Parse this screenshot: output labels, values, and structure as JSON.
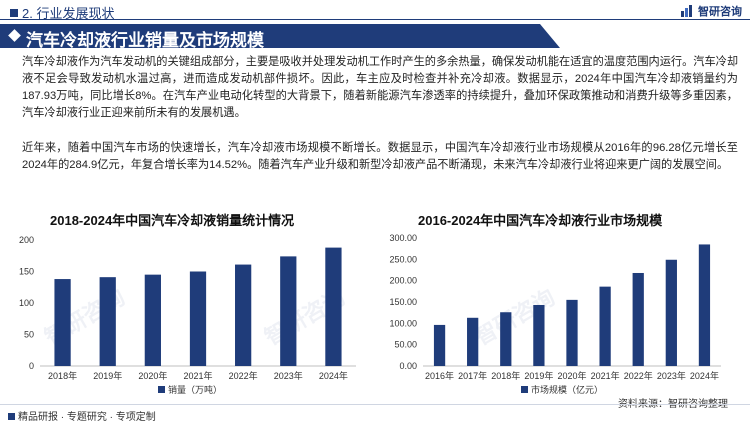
{
  "header": {
    "section": "2. 行业发展现状",
    "brand": "智研咨询"
  },
  "banner": {
    "title": "汽车冷却液行业销量及市场规模"
  },
  "paragraphs": {
    "p1": "汽车冷却液作为汽车发动机的关键组成部分，主要是吸收并处理发动机工作时产生的多余热量，确保发动机能在适宜的温度范围内运行。汽车冷却液不足会导致发动机水温过高，进而造成发动机部件损坏。因此，车主应及时检查并补充冷却液。数据显示，2024年中国汽车冷却液销量约为187.93万吨，同比增长8%。在汽车产业电动化转型的大背景下，随着新能源汽车渗透率的持续提升，叠加环保政策推动和消费升级等多重因素，汽车冷却液行业正迎来前所未有的发展机遇。",
    "p2": "近年来，随着中国汽车市场的快速增长，汽车冷却液市场规模不断增长。数据显示，中国汽车冷却液行业市场规模从2016年的96.28亿元增长至2024年的284.9亿元，年复合增长率为14.52%。随着汽车产业升级和新型冷却液产品不断涌现，未来汽车冷却液行业将迎来更广阔的发展空间。"
  },
  "chart_data": [
    {
      "type": "bar",
      "title": "2018-2024年中国汽车冷却液销量统计情况",
      "categories": [
        "2018年",
        "2019年",
        "2020年",
        "2021年",
        "2022年",
        "2023年",
        "2024年"
      ],
      "series": [
        {
          "name": "销量（万吨）",
          "values": [
            138,
            141,
            145,
            150,
            161,
            174,
            187.93
          ]
        }
      ],
      "ylim": [
        0,
        200
      ],
      "yticks": [
        "0",
        "50",
        "100",
        "150",
        "200"
      ],
      "grid": false,
      "legend": "bottom",
      "color": "#1f3c7a"
    },
    {
      "type": "bar",
      "title": "2016-2024年中国汽车冷却液行业市场规模",
      "categories": [
        "2016年",
        "2017年",
        "2018年",
        "2019年",
        "2020年",
        "2021年",
        "2022年",
        "2023年",
        "2024年"
      ],
      "series": [
        {
          "name": "市场规模（亿元）",
          "values": [
            96.28,
            113,
            126,
            143,
            155,
            186,
            218,
            249,
            284.9
          ]
        }
      ],
      "ylim": [
        0,
        300
      ],
      "yticks": [
        "0.00",
        "50.00",
        "100.00",
        "150.00",
        "200.00",
        "250.00",
        "300.00"
      ],
      "grid": false,
      "legend": "bottom",
      "color": "#1f3c7a"
    }
  ],
  "footer": {
    "tagline": "精品研报 · 专题研究 · 专项定制",
    "source": "资料来源：智研咨询整理"
  },
  "watermarks": [
    "智研咨询",
    "智研咨询",
    "智研咨询"
  ],
  "colors": {
    "brand": "#1f3c7a"
  }
}
